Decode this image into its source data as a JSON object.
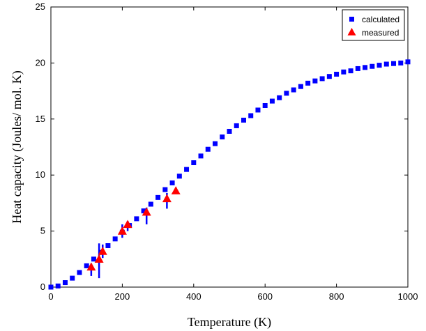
{
  "chart_data": {
    "type": "scatter",
    "title": "",
    "xlabel": "Temperature (K)",
    "ylabel": "Heat capacity (Joules/ mol. K)",
    "xlim": [
      0,
      1000
    ],
    "ylim": [
      0,
      25
    ],
    "xticks": [
      0,
      200,
      400,
      600,
      800,
      1000
    ],
    "yticks": [
      0,
      5,
      10,
      15,
      20,
      25
    ],
    "grid": false,
    "legend_position": "top-right",
    "series": [
      {
        "name": "calculated",
        "marker": "square",
        "color": "#0000ff",
        "x": [
          0,
          20,
          40,
          60,
          80,
          100,
          120,
          140,
          160,
          180,
          200,
          220,
          240,
          260,
          280,
          300,
          320,
          340,
          360,
          380,
          400,
          420,
          440,
          460,
          480,
          500,
          520,
          540,
          560,
          580,
          600,
          620,
          640,
          660,
          680,
          700,
          720,
          740,
          760,
          780,
          800,
          820,
          840,
          860,
          880,
          900,
          920,
          940,
          960,
          980,
          1000
        ],
        "y": [
          0,
          0.1,
          0.4,
          0.8,
          1.3,
          1.9,
          2.5,
          3.1,
          3.7,
          4.3,
          4.9,
          5.5,
          6.1,
          6.8,
          7.4,
          8.0,
          8.7,
          9.3,
          9.9,
          10.5,
          11.1,
          11.7,
          12.3,
          12.8,
          13.4,
          13.9,
          14.4,
          14.9,
          15.3,
          15.8,
          16.2,
          16.6,
          16.9,
          17.3,
          17.6,
          17.9,
          18.2,
          18.4,
          18.6,
          18.8,
          19.0,
          19.2,
          19.3,
          19.5,
          19.6,
          19.7,
          19.8,
          19.9,
          19.95,
          20.0,
          20.1
        ]
      },
      {
        "name": "measured",
        "marker": "triangle",
        "color": "#ff0000",
        "x": [
          113,
          135,
          145,
          200,
          215,
          268,
          325,
          350
        ],
        "y": [
          1.8,
          2.5,
          3.2,
          5.0,
          5.6,
          6.7,
          7.9,
          8.6
        ],
        "error_low": [
          1.0,
          0.8,
          2.6,
          4.4,
          5.0,
          5.6,
          7.0,
          8.4
        ],
        "error_high": [
          2.1,
          3.9,
          3.8,
          5.6,
          5.9,
          7.1,
          8.4,
          8.9
        ]
      }
    ]
  }
}
